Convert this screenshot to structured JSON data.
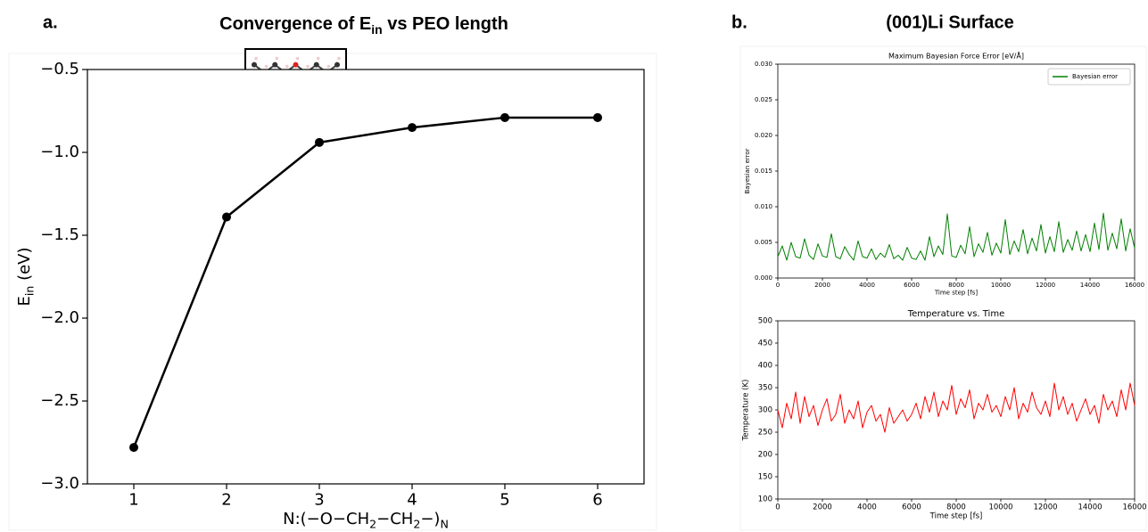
{
  "figure": {
    "label_a": "a.",
    "label_b": "b.",
    "title_b": "(001)Li Surface"
  },
  "chart_data": [
    {
      "type": "line",
      "title": [
        "Convergence of E",
        "in",
        " vs PEO length"
      ],
      "xlabel": [
        "N:(−O−CH",
        "2",
        "−CH",
        "2",
        "−)",
        "N"
      ],
      "ylabel": [
        "E",
        "in",
        " (eV)"
      ],
      "x": [
        1,
        2,
        3,
        4,
        5,
        6
      ],
      "series": [
        {
          "color": "#000000",
          "values": [
            -2.78,
            -1.39,
            -0.94,
            -0.85,
            -0.79,
            -0.79
          ]
        }
      ],
      "xlim": [
        0.5,
        6.5
      ],
      "ylim": [
        -3.0,
        -0.5
      ],
      "xticks": [
        1,
        2,
        3,
        4,
        5,
        6
      ],
      "yticks": [
        {
          "value": -3.0,
          "label": "−3.0"
        },
        {
          "value": -2.5,
          "label": "−2.5"
        },
        {
          "value": -2.0,
          "label": "−2.0"
        },
        {
          "value": -1.5,
          "label": "−1.5"
        },
        {
          "value": -1.0,
          "label": "−1.0"
        },
        {
          "value": -0.5,
          "label": "−0.5"
        }
      ],
      "markers": true,
      "grid": false
    },
    {
      "type": "line",
      "title": "Maximum Bayesian Force Error [eV/Å]",
      "xlabel": "Time step [fs]",
      "ylabel": "Bayesian error",
      "x": [
        0,
        200,
        400,
        600,
        800,
        1000,
        1200,
        1400,
        1600,
        1800,
        2000,
        2200,
        2400,
        2600,
        2800,
        3000,
        3200,
        3400,
        3600,
        3800,
        4000,
        4200,
        4400,
        4600,
        4800,
        5000,
        5200,
        5400,
        5600,
        5800,
        6000,
        6200,
        6400,
        6600,
        6800,
        7000,
        7200,
        7400,
        7600,
        7800,
        8000,
        8200,
        8400,
        8600,
        8800,
        9000,
        9200,
        9400,
        9600,
        9800,
        10000,
        10200,
        10400,
        10600,
        10800,
        11000,
        11200,
        11400,
        11600,
        11800,
        12000,
        12200,
        12400,
        12600,
        12800,
        13000,
        13200,
        13400,
        13600,
        13800,
        14000,
        14200,
        14400,
        14600,
        14800,
        15000,
        15200,
        15400,
        15600,
        15800,
        16000
      ],
      "series": [
        {
          "name": "Bayesian error",
          "color": "#008000",
          "values": [
            0.003,
            0.0045,
            0.0025,
            0.005,
            0.003,
            0.0028,
            0.0055,
            0.0032,
            0.0026,
            0.0048,
            0.0031,
            0.0029,
            0.0062,
            0.003,
            0.0027,
            0.0044,
            0.0033,
            0.0025,
            0.0052,
            0.003,
            0.0028,
            0.0041,
            0.0026,
            0.0035,
            0.0029,
            0.0047,
            0.0027,
            0.0032,
            0.0025,
            0.0043,
            0.0028,
            0.0026,
            0.0038,
            0.0025,
            0.0058,
            0.003,
            0.0045,
            0.0033,
            0.009,
            0.0031,
            0.0029,
            0.0046,
            0.0034,
            0.0072,
            0.003,
            0.0048,
            0.0036,
            0.0064,
            0.0032,
            0.0049,
            0.0035,
            0.0082,
            0.0033,
            0.0052,
            0.0037,
            0.0068,
            0.0034,
            0.0056,
            0.0038,
            0.0075,
            0.0035,
            0.0058,
            0.0037,
            0.0079,
            0.0036,
            0.0054,
            0.0039,
            0.0066,
            0.0038,
            0.0061,
            0.0037,
            0.0077,
            0.004,
            0.0091,
            0.0039,
            0.0063,
            0.0041,
            0.0083,
            0.0038,
            0.0069,
            0.0042
          ]
        }
      ],
      "xlim": [
        0,
        16000
      ],
      "ylim": [
        0,
        0.03
      ],
      "xticks": [
        0,
        2000,
        4000,
        6000,
        8000,
        10000,
        12000,
        14000,
        16000
      ],
      "yticks": [
        {
          "value": 0,
          "label": "0.000"
        },
        {
          "value": 0.005,
          "label": "0.005"
        },
        {
          "value": 0.01,
          "label": "0.010"
        },
        {
          "value": 0.015,
          "label": "0.015"
        },
        {
          "value": 0.02,
          "label": "0.020"
        },
        {
          "value": 0.025,
          "label": "0.025"
        },
        {
          "value": 0.03,
          "label": "0.030"
        }
      ],
      "legend": "upper right",
      "markers": false,
      "grid": false
    },
    {
      "type": "line",
      "title": "Temperature vs. Time",
      "xlabel": "Time step [fs]",
      "ylabel": "Temperature (K)",
      "x": [
        0,
        200,
        400,
        600,
        800,
        1000,
        1200,
        1400,
        1600,
        1800,
        2000,
        2200,
        2400,
        2600,
        2800,
        3000,
        3200,
        3400,
        3600,
        3800,
        4000,
        4200,
        4400,
        4600,
        4800,
        5000,
        5200,
        5400,
        5600,
        5800,
        6000,
        6200,
        6400,
        6600,
        6800,
        7000,
        7200,
        7400,
        7600,
        7800,
        8000,
        8200,
        8400,
        8600,
        8800,
        9000,
        9200,
        9400,
        9600,
        9800,
        10000,
        10200,
        10400,
        10600,
        10800,
        11000,
        11200,
        11400,
        11600,
        11800,
        12000,
        12200,
        12400,
        12600,
        12800,
        13000,
        13200,
        13400,
        13600,
        13800,
        14000,
        14200,
        14400,
        14600,
        14800,
        15000,
        15200,
        15400,
        15600,
        15800,
        16000
      ],
      "series": [
        {
          "color": "#ff0000",
          "values": [
            300,
            260,
            315,
            280,
            340,
            270,
            330,
            285,
            310,
            265,
            300,
            325,
            275,
            290,
            335,
            270,
            300,
            280,
            320,
            260,
            295,
            310,
            275,
            290,
            250,
            305,
            270,
            285,
            300,
            275,
            290,
            315,
            280,
            330,
            295,
            340,
            285,
            320,
            300,
            355,
            290,
            325,
            305,
            345,
            280,
            315,
            300,
            335,
            295,
            310,
            285,
            330,
            300,
            350,
            280,
            315,
            295,
            340,
            305,
            290,
            320,
            285,
            360,
            300,
            330,
            290,
            315,
            275,
            300,
            325,
            290,
            310,
            270,
            335,
            300,
            320,
            285,
            345,
            300,
            360,
            310
          ]
        }
      ],
      "xlim": [
        0,
        16000
      ],
      "ylim": [
        100,
        500
      ],
      "xticks": [
        0,
        2000,
        4000,
        6000,
        8000,
        10000,
        12000,
        14000,
        16000
      ],
      "yticks": [
        100,
        150,
        200,
        250,
        300,
        350,
        400,
        450,
        500
      ],
      "markers": false,
      "grid": false
    }
  ]
}
